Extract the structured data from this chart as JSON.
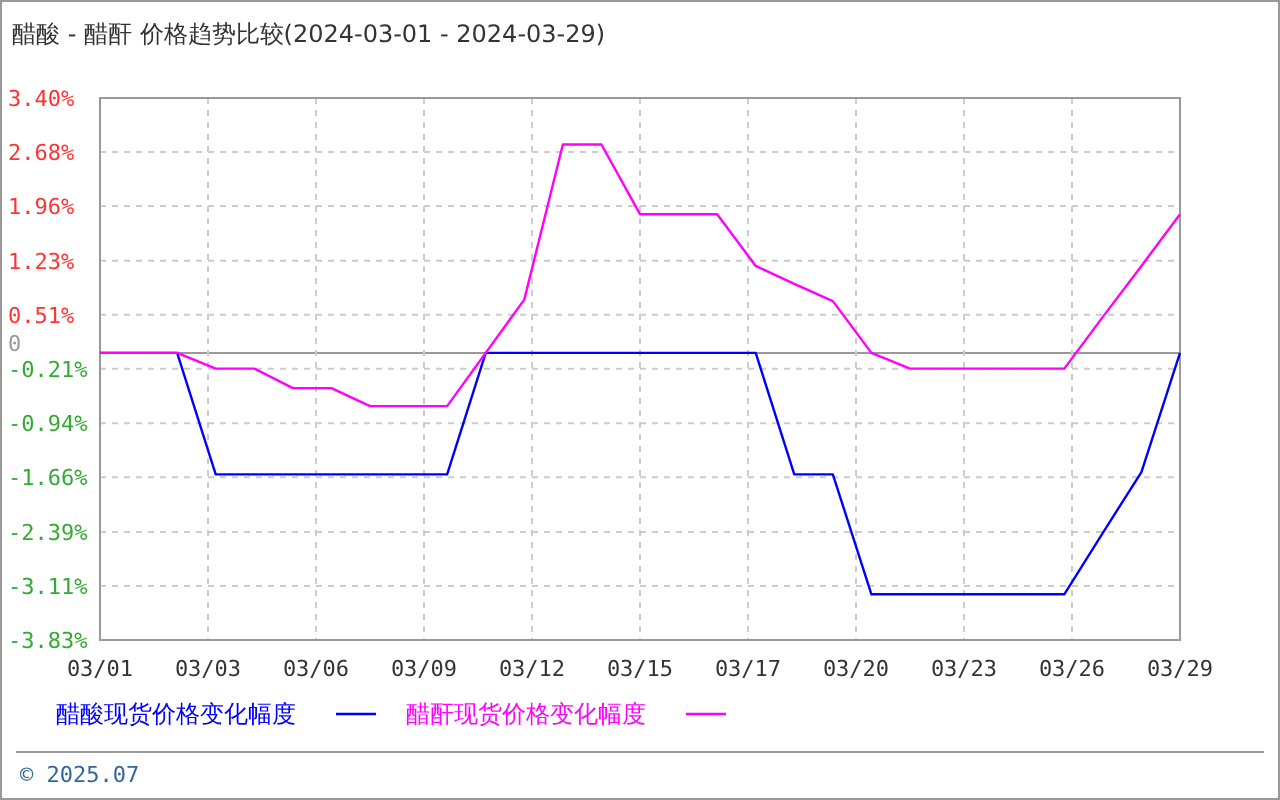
{
  "chart_data": {
    "type": "line",
    "title": "醋酸 - 醋酐 价格趋势比较(2024-03-01 - 2024-03-29)",
    "x": [
      "2024-03-01",
      "2024-03-02",
      "2024-03-03",
      "2024-03-04",
      "2024-03-05",
      "2024-03-06",
      "2024-03-07",
      "2024-03-08",
      "2024-03-09",
      "2024-03-10",
      "2024-03-11",
      "2024-03-12",
      "2024-03-13",
      "2024-03-14",
      "2024-03-15",
      "2024-03-16",
      "2024-03-17",
      "2024-03-18",
      "2024-03-19",
      "2024-03-20",
      "2024-03-21",
      "2024-03-22",
      "2024-03-23",
      "2024-03-24",
      "2024-03-25",
      "2024-03-26",
      "2024-03-27",
      "2024-03-28",
      "2024-03-29"
    ],
    "series": [
      {
        "name": "醋酸现货价格变化幅度",
        "color": "#0000ff",
        "values": [
          0,
          0,
          0,
          -1.62,
          -1.62,
          -1.62,
          -1.62,
          -1.62,
          -1.62,
          -1.62,
          0,
          0,
          0,
          0,
          0,
          0,
          0,
          0,
          -1.62,
          -1.62,
          -3.22,
          -3.22,
          -3.22,
          -3.22,
          -3.22,
          -3.22,
          -2.4,
          -1.59,
          0
        ]
      },
      {
        "name": "醋酐现货价格变化幅度",
        "color": "#ff00ff",
        "values": [
          0,
          0,
          0,
          -0.21,
          -0.21,
          -0.47,
          -0.47,
          -0.71,
          -0.71,
          -0.71,
          0,
          0.71,
          2.78,
          2.78,
          1.85,
          1.85,
          1.85,
          1.16,
          0.92,
          0.69,
          0,
          -0.21,
          -0.21,
          -0.21,
          -0.21,
          -0.21,
          0.48,
          1.16,
          1.85
        ]
      }
    ],
    "xlim": [
      "2024-03-01",
      "2024-03-29"
    ],
    "xticks": [
      {
        "value": "2024-03-01",
        "label": "03/01"
      },
      {
        "value": "2024-03-03T19:12",
        "label": "03/03"
      },
      {
        "value": "2024-03-06T14:24",
        "label": "03/06"
      },
      {
        "value": "2024-03-09T09:36",
        "label": "03/09"
      },
      {
        "value": "2024-03-12T04:48",
        "label": "03/12"
      },
      {
        "value": "2024-03-15",
        "label": "03/15"
      },
      {
        "value": "2024-03-17T19:12",
        "label": "03/17"
      },
      {
        "value": "2024-03-20T14:24",
        "label": "03/20"
      },
      {
        "value": "2024-03-23T09:36",
        "label": "03/23"
      },
      {
        "value": "2024-03-26T04:48",
        "label": "03/26"
      },
      {
        "value": "2024-03-29",
        "label": "03/29"
      }
    ],
    "ylim": [
      -3.83,
      3.4
    ],
    "yticks": [
      {
        "value": -3.83,
        "label": "-3.83%"
      },
      {
        "value": -3.11,
        "label": "-3.11%"
      },
      {
        "value": -2.39,
        "label": "-2.39%"
      },
      {
        "value": -1.66,
        "label": "-1.66%"
      },
      {
        "value": -0.94,
        "label": "-0.94%"
      },
      {
        "value": -0.21,
        "label": "-0.21%"
      },
      0,
      {
        "value": 0.51,
        "label": "0.51%"
      },
      {
        "value": 1.23,
        "label": "1.23%"
      },
      {
        "value": 1.96,
        "label": "1.96%"
      },
      {
        "value": 2.68,
        "label": "2.68%"
      },
      {
        "value": 3.4,
        "label": "3.40%"
      }
    ],
    "grid": true,
    "legend": "bottom",
    "marker": "none",
    "line_style": "solid",
    "annotations": [
      "© 2025.07"
    ]
  }
}
